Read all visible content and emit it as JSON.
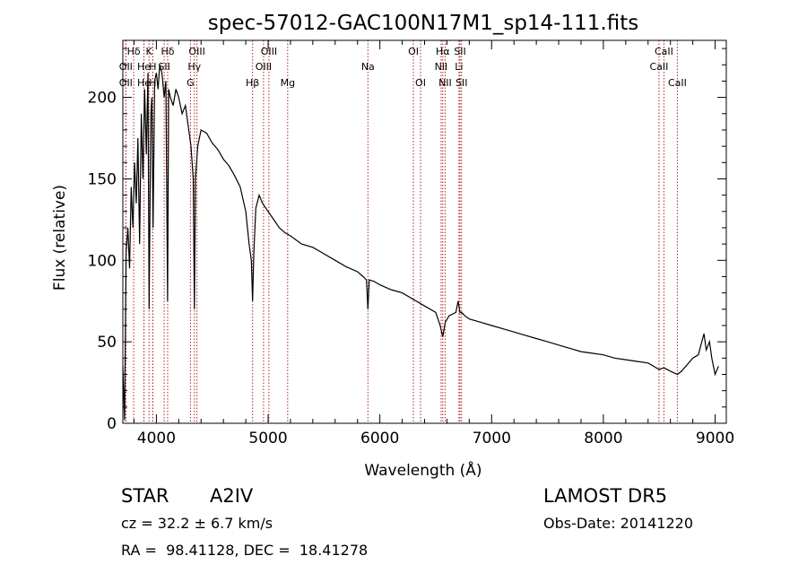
{
  "chart_data": {
    "type": "line",
    "title": "spec-57012-GAC100N17M1_sp14-111.fits",
    "xlabel": "Wavelength (Å)",
    "ylabel": "Flux (relative)",
    "xlim": [
      3700,
      9100
    ],
    "ylim": [
      0,
      235
    ],
    "x_ticks": [
      4000,
      5000,
      6000,
      7000,
      8000,
      9000
    ],
    "y_ticks": [
      0,
      50,
      100,
      150,
      200
    ],
    "grid": false,
    "line_color": "#000000",
    "marker_color": "#b22222",
    "series": [
      {
        "x": [
          3700,
          3715,
          3730,
          3745,
          3760,
          3775,
          3790,
          3805,
          3820,
          3835,
          3850,
          3865,
          3880,
          3895,
          3910,
          3925,
          3935,
          3950,
          3960,
          3970,
          3985,
          4000,
          4015,
          4030,
          4050,
          4070,
          4085,
          4100,
          4110,
          4125,
          4150,
          4175,
          4200,
          4230,
          4260,
          4290,
          4310,
          4330,
          4340,
          4350,
          4370,
          4400,
          4450,
          4500,
          4550,
          4600,
          4650,
          4700,
          4750,
          4800,
          4830,
          4850,
          4861,
          4872,
          4890,
          4920,
          4950,
          5000,
          5050,
          5100,
          5150,
          5200,
          5300,
          5400,
          5500,
          5600,
          5700,
          5800,
          5850,
          5880,
          5893,
          5905,
          5950,
          6000,
          6100,
          6200,
          6300,
          6400,
          6500,
          6540,
          6563,
          6585,
          6620,
          6680,
          6700,
          6717,
          6731,
          6760,
          6800,
          6900,
          7000,
          7100,
          7200,
          7300,
          7400,
          7500,
          7600,
          7700,
          7800,
          7900,
          8000,
          8100,
          8200,
          8300,
          8400,
          8498,
          8542,
          8600,
          8662,
          8700,
          8750,
          8800,
          8850,
          8900,
          8920,
          8950,
          8970,
          9000,
          9030
        ],
        "y": [
          35,
          2,
          105,
          120,
          95,
          145,
          120,
          160,
          135,
          175,
          110,
          190,
          150,
          205,
          165,
          215,
          70,
          190,
          200,
          120,
          210,
          215,
          205,
          220,
          215,
          200,
          210,
          75,
          205,
          200,
          195,
          205,
          200,
          190,
          195,
          180,
          170,
          150,
          70,
          150,
          170,
          180,
          178,
          172,
          168,
          162,
          158,
          152,
          145,
          130,
          110,
          100,
          75,
          105,
          132,
          140,
          135,
          130,
          125,
          120,
          117,
          115,
          110,
          108,
          104,
          100,
          96,
          93,
          90,
          88,
          70,
          88,
          87,
          85,
          82,
          80,
          76,
          72,
          68,
          60,
          53,
          62,
          66,
          68,
          75,
          68,
          68,
          66,
          64,
          62,
          60,
          58,
          56,
          54,
          52,
          50,
          48,
          46,
          44,
          43,
          42,
          40,
          39,
          38,
          37,
          33,
          34,
          32,
          30,
          32,
          36,
          40,
          42,
          55,
          45,
          50,
          40,
          30,
          35
        ]
      }
    ],
    "lines": [
      {
        "label": "Hδ",
        "x": 3797,
        "row": 1
      },
      {
        "label": "OII",
        "x": 3727,
        "row": 2
      },
      {
        "label": "OII",
        "x": 3727,
        "row": 3
      },
      {
        "label": "K",
        "x": 3934,
        "row": 1
      },
      {
        "label": "He",
        "x": 3889,
        "row": 2
      },
      {
        "label": "H",
        "x": 3968,
        "row": 2
      },
      {
        "label": "He",
        "x": 3889,
        "row": 3
      },
      {
        "label": "H",
        "x": 3968,
        "row": 3
      },
      {
        "label": "Hδ",
        "x": 4101,
        "row": 1
      },
      {
        "label": "SII",
        "x": 4070,
        "row": 2
      },
      {
        "label": "OIII",
        "x": 4363,
        "row": 1
      },
      {
        "label": "Hγ",
        "x": 4340,
        "row": 2
      },
      {
        "label": "G",
        "x": 4305,
        "row": 3
      },
      {
        "label": "OIII",
        "x": 5007,
        "row": 1
      },
      {
        "label": "OIII",
        "x": 4959,
        "row": 2
      },
      {
        "label": "Hβ",
        "x": 4861,
        "row": 3
      },
      {
        "label": "Mg",
        "x": 5175,
        "row": 3
      },
      {
        "label": "Na",
        "x": 5893,
        "row": 2
      },
      {
        "label": "OI",
        "x": 6300,
        "row": 1
      },
      {
        "label": "OI",
        "x": 6364,
        "row": 3
      },
      {
        "label": "Hα",
        "x": 6563,
        "row": 1
      },
      {
        "label": "SII",
        "x": 6717,
        "row": 1
      },
      {
        "label": "NII",
        "x": 6548,
        "row": 2
      },
      {
        "label": "Li",
        "x": 6708,
        "row": 2
      },
      {
        "label": "NII",
        "x": 6584,
        "row": 3
      },
      {
        "label": "SII",
        "x": 6731,
        "row": 3
      },
      {
        "label": "CaII",
        "x": 8542,
        "row": 1
      },
      {
        "label": "CaII",
        "x": 8498,
        "row": 2
      },
      {
        "label": "CaII",
        "x": 8662,
        "row": 3
      }
    ]
  },
  "info": {
    "object_class": "STAR",
    "subclass": "A2IV",
    "survey": "LAMOST DR5",
    "cz": "cz = 32.2 ± 6.7 km/s",
    "obs_date": "Obs-Date: 20141220",
    "coords": "RA =  98.41128, DEC =  18.41278"
  }
}
